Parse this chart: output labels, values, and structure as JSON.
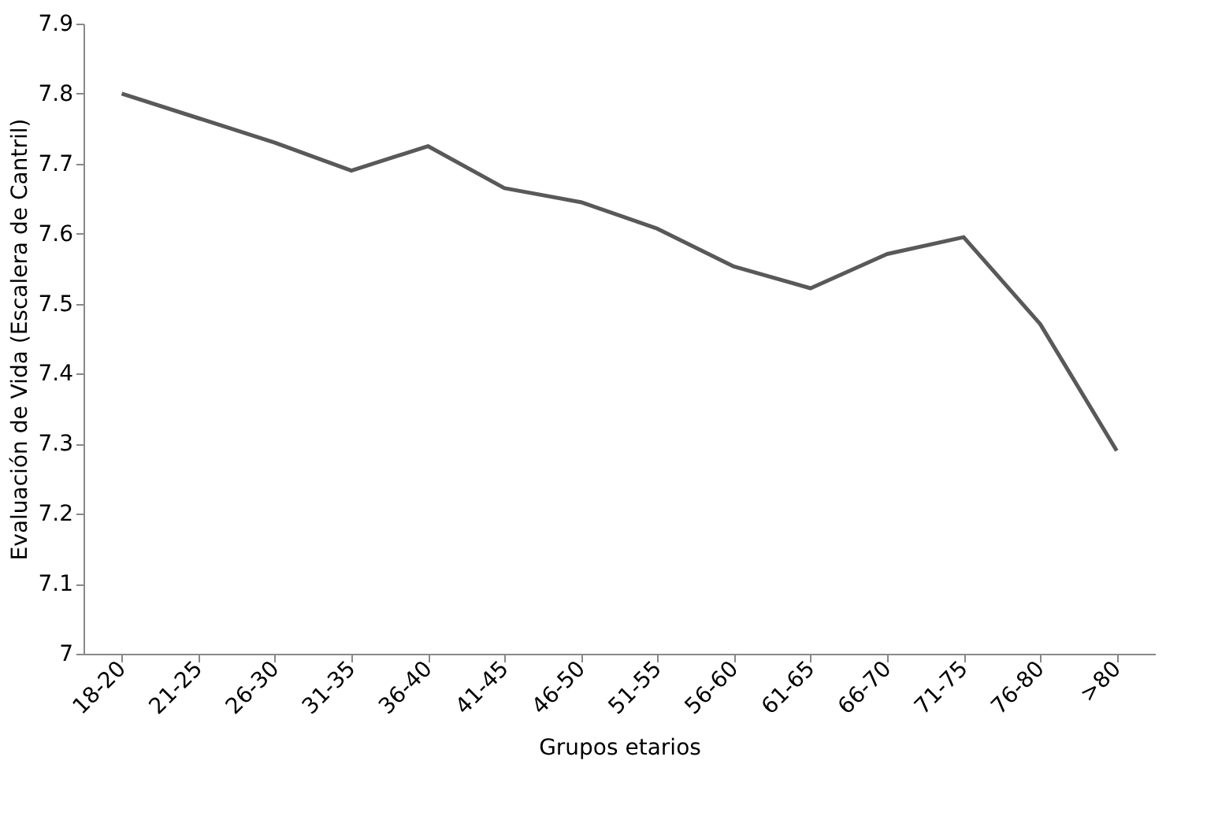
{
  "chart_data": {
    "type": "line",
    "xlabel": "Grupos etarios",
    "ylabel": "Evaluación de Vida (Escalera de Cantril)",
    "categories": [
      "18-20",
      "21-25",
      "26-30",
      "31-35",
      "36-40",
      "41-45",
      "46-50",
      "51-55",
      "56-60",
      "61-65",
      "66-70",
      "71-75",
      "76-80",
      ">80"
    ],
    "series": [
      {
        "color": "#595959",
        "values": [
          7.8,
          7.765,
          7.73,
          7.69,
          7.725,
          7.665,
          7.645,
          7.607,
          7.553,
          7.522,
          7.571,
          7.595,
          7.471,
          7.29
        ]
      }
    ],
    "ylim": [
      7,
      7.9
    ],
    "yticks": [
      7,
      7.1,
      7.2,
      7.3,
      7.4,
      7.5,
      7.6,
      7.7,
      7.8,
      7.9
    ],
    "grid": false,
    "marker": "none",
    "line_style": "solid"
  }
}
